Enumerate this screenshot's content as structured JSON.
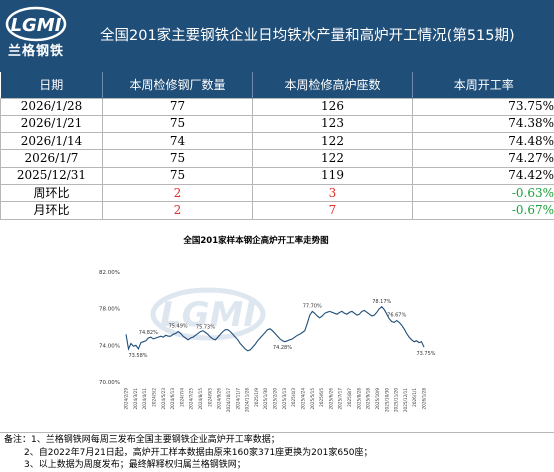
{
  "header": {
    "logo_text": "LGMI",
    "logo_cn": "兰格钢铁",
    "title": "全国201家主要钢铁企业日均铁水产量和高炉开工情况(第515期)"
  },
  "table": {
    "headers": [
      "日期",
      "本周检修钢厂数量",
      "本周检修高炉座数",
      "本周开工率"
    ],
    "rows": [
      {
        "date": "2026/1/28",
        "plants": "77",
        "furnaces": "126",
        "rate": "73.75%"
      },
      {
        "date": "2026/1/21",
        "plants": "75",
        "furnaces": "123",
        "rate": "74.38%"
      },
      {
        "date": "2026/1/14",
        "plants": "74",
        "furnaces": "122",
        "rate": "74.48%"
      },
      {
        "date": "2026/1/7",
        "plants": "75",
        "furnaces": "122",
        "rate": "74.27%"
      },
      {
        "date": "2025/12/31",
        "plants": "75",
        "furnaces": "119",
        "rate": "74.42%"
      }
    ],
    "wow": {
      "label": "周环比",
      "plants": "2",
      "furnaces": "3",
      "rate": "-0.63%"
    },
    "mom": {
      "label": "月环比",
      "plants": "2",
      "furnaces": "7",
      "rate": "-0.67%"
    }
  },
  "colors": {
    "header_bg": "#1f4e79",
    "increase": "#e0302a",
    "decrease": "#1aa23a",
    "line": "#1f4e79"
  },
  "chart_data": {
    "type": "line",
    "title": "全国201家样本钢企高炉开工率走势图",
    "ylim": [
      70.0,
      82.0
    ],
    "yticks": [
      "82.00%",
      "78.00%",
      "74.00%",
      "70.00%"
    ],
    "ytick_values": [
      82,
      78,
      74,
      70
    ],
    "grid": false,
    "watermark": "LGMI",
    "x_labels": [
      "2024/2/29",
      "2024/3/21",
      "2024/4/11",
      "2024/5/2",
      "2024/5/23",
      "2024/6/13",
      "2024/7/4",
      "2024/7/25",
      "2024/8/15",
      "2024/9/5",
      "2024/9/26",
      "2024/10/17",
      "2024/11/7",
      "2024/11/28",
      "2025/1/9",
      "2025/1/30",
      "2025/2/20",
      "2025/3/13",
      "2025/4/3",
      "2025/4/24",
      "2025/5/15",
      "2025/6/5",
      "2025/6/26",
      "2025/7/17",
      "2025/8/7",
      "2025/8/28",
      "2025/9/18",
      "2025/10/9",
      "2025/10/30",
      "2025/11/20",
      "2025/12/11",
      "2026/1/1",
      "2026/1/28"
    ],
    "values": [
      75.2,
      73.6,
      74.2,
      73.9,
      74.0,
      73.6,
      74.3,
      74.4,
      74.5,
      74.8,
      74.9,
      74.7,
      74.8,
      74.9,
      75.0,
      74.9,
      75.1,
      75.0,
      75.0,
      75.2,
      75.3,
      75.5,
      75.3,
      75.0,
      74.8,
      74.6,
      74.8,
      74.9,
      75.1,
      75.3,
      75.5,
      75.6,
      75.4,
      75.2,
      74.9,
      74.7,
      74.6,
      74.9,
      75.2,
      75.5,
      75.7,
      75.7,
      75.5,
      75.2,
      74.9,
      74.6,
      74.2,
      73.9,
      73.6,
      73.4,
      73.5,
      73.8,
      74.1,
      74.5,
      74.8,
      75.1,
      75.4,
      75.7,
      75.8,
      75.6,
      75.3,
      75.0,
      74.7,
      74.5,
      74.4,
      74.5,
      74.6,
      74.7,
      74.9,
      75.1,
      75.2,
      75.4,
      75.6,
      76.4,
      77.3,
      77.7,
      77.5,
      77.2,
      77.0,
      77.2,
      77.5,
      77.6,
      77.7,
      77.6,
      77.5,
      77.4,
      77.6,
      77.7,
      77.5,
      77.4,
      77.6,
      77.7,
      77.5,
      77.3,
      77.4,
      77.7,
      77.8,
      77.6,
      77.4,
      77.2,
      77.3,
      77.6,
      78.0,
      78.2,
      77.9,
      77.4,
      76.9,
      76.6,
      76.5,
      76.7,
      76.5,
      76.2,
      75.8,
      75.3,
      74.9,
      74.6,
      74.4,
      74.5,
      74.3,
      74.4,
      73.8
    ],
    "annotations": [
      {
        "label": "73.58%",
        "index": 1
      },
      {
        "label": "74.82%",
        "index": 9
      },
      {
        "label": "75.49%",
        "index": 21
      },
      {
        "label": "75.73%",
        "index": 32
      },
      {
        "label": "74.28%",
        "index": 63
      },
      {
        "label": "77.70%",
        "index": 75
      },
      {
        "label": "78.17%",
        "index": 103
      },
      {
        "label": "76.67%",
        "index": 109
      },
      {
        "label": "73.75%",
        "index": 120
      }
    ]
  },
  "notes": [
    "备注：1、兰格钢铁网每周三发布全国主要钢铁企业高炉开工率数据；",
    "2、自2022年7月21日起，高炉开工样本数据由原来160家371座更换为201家650座；",
    "3、以上数据为周度发布；最终解释权归属兰格钢铁网；"
  ]
}
